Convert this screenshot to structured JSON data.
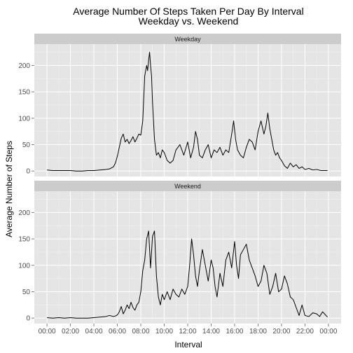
{
  "colors": {
    "panel_bg": "#e5e5e5",
    "strip_bg": "#cccccc",
    "grid_major": "#ffffff",
    "grid_minor": "#f2f2f2",
    "line": "#000000",
    "tick_text": "#4d4d4d"
  },
  "chart_data": {
    "type": "line",
    "title": "Average Number Of Steps Taken Per Day By Interval",
    "subtitle": "Weekday vs. Weekend",
    "xlabel": "Interval",
    "ylabel": "Average Number of Steps",
    "xlim": [
      "00:00",
      "24:00"
    ],
    "ylim": [
      0,
      230
    ],
    "y_ticks": [
      0,
      50,
      100,
      150,
      200
    ],
    "x_ticks": [
      "00:00",
      "02:00",
      "04:00",
      "06:00",
      "08:00",
      "10:00",
      "12:00",
      "14:00",
      "16:00",
      "18:00",
      "20:00",
      "22:00",
      "00:00"
    ],
    "grid": true,
    "facets": [
      {
        "strip": "Weekday",
        "x": [
          "00:00",
          "00:30",
          "01:00",
          "01:30",
          "02:00",
          "02:30",
          "03:00",
          "03:30",
          "04:00",
          "04:30",
          "05:00",
          "05:20",
          "05:40",
          "05:50",
          "06:00",
          "06:10",
          "06:20",
          "06:30",
          "06:40",
          "06:50",
          "07:00",
          "07:10",
          "07:20",
          "07:30",
          "07:40",
          "07:50",
          "08:00",
          "08:10",
          "08:20",
          "08:30",
          "08:35",
          "08:40",
          "08:45",
          "08:50",
          "08:55",
          "09:00",
          "09:10",
          "09:20",
          "09:30",
          "09:40",
          "09:50",
          "10:00",
          "10:15",
          "10:30",
          "10:45",
          "11:00",
          "11:20",
          "11:40",
          "12:00",
          "12:15",
          "12:30",
          "12:40",
          "12:50",
          "13:00",
          "13:15",
          "13:30",
          "13:45",
          "14:00",
          "14:15",
          "14:30",
          "14:45",
          "15:00",
          "15:15",
          "15:30",
          "15:45",
          "15:55",
          "16:05",
          "16:15",
          "16:30",
          "16:45",
          "17:00",
          "17:15",
          "17:30",
          "17:45",
          "18:00",
          "18:15",
          "18:30",
          "18:40",
          "18:50",
          "19:00",
          "19:10",
          "19:20",
          "19:30",
          "19:40",
          "19:50",
          "20:00",
          "20:15",
          "20:30",
          "20:45",
          "21:00",
          "21:15",
          "21:30",
          "21:45",
          "22:00",
          "22:20",
          "22:40",
          "23:00",
          "23:20",
          "23:55"
        ],
        "y": [
          2,
          1,
          1,
          1,
          1,
          0,
          0,
          1,
          1,
          2,
          3,
          4,
          8,
          15,
          28,
          45,
          62,
          70,
          55,
          60,
          52,
          58,
          65,
          55,
          62,
          70,
          68,
          95,
          180,
          200,
          190,
          210,
          225,
          200,
          180,
          130,
          60,
          30,
          35,
          25,
          40,
          35,
          20,
          15,
          20,
          40,
          50,
          30,
          55,
          25,
          45,
          75,
          60,
          30,
          25,
          40,
          50,
          25,
          40,
          35,
          45,
          30,
          40,
          35,
          70,
          95,
          60,
          40,
          30,
          25,
          45,
          60,
          55,
          40,
          75,
          95,
          70,
          85,
          110,
          80,
          60,
          40,
          30,
          35,
          25,
          20,
          10,
          5,
          15,
          8,
          12,
          5,
          8,
          3,
          5,
          2,
          3,
          1,
          1
        ]
      },
      {
        "strip": "Weekend",
        "x": [
          "00:00",
          "00:30",
          "01:00",
          "01:30",
          "02:00",
          "02:30",
          "03:00",
          "03:30",
          "04:00",
          "04:30",
          "05:00",
          "05:20",
          "05:40",
          "05:50",
          "06:00",
          "06:10",
          "06:20",
          "06:30",
          "06:40",
          "06:50",
          "07:00",
          "07:10",
          "07:20",
          "07:30",
          "07:40",
          "07:50",
          "08:00",
          "08:10",
          "08:20",
          "08:30",
          "08:40",
          "08:50",
          "09:00",
          "09:10",
          "09:20",
          "09:30",
          "09:40",
          "09:50",
          "10:00",
          "10:15",
          "10:30",
          "10:45",
          "11:00",
          "11:15",
          "11:30",
          "11:45",
          "12:00",
          "12:10",
          "12:20",
          "12:30",
          "12:40",
          "12:50",
          "13:00",
          "13:15",
          "13:30",
          "13:45",
          "14:00",
          "14:10",
          "14:20",
          "14:30",
          "14:45",
          "15:00",
          "15:15",
          "15:30",
          "15:45",
          "16:00",
          "16:10",
          "16:20",
          "16:30",
          "16:45",
          "17:00",
          "17:15",
          "17:30",
          "17:45",
          "18:00",
          "18:15",
          "18:30",
          "18:45",
          "19:00",
          "19:15",
          "19:30",
          "19:45",
          "20:00",
          "20:15",
          "20:30",
          "20:45",
          "21:00",
          "21:15",
          "21:30",
          "21:45",
          "22:00",
          "22:20",
          "22:40",
          "23:00",
          "23:15",
          "23:30",
          "23:55"
        ],
        "y": [
          1,
          0,
          1,
          0,
          1,
          0,
          0,
          0,
          1,
          2,
          3,
          5,
          3,
          4,
          6,
          12,
          22,
          8,
          15,
          25,
          18,
          30,
          20,
          15,
          25,
          30,
          50,
          90,
          110,
          150,
          165,
          95,
          155,
          165,
          80,
          40,
          25,
          45,
          35,
          50,
          35,
          55,
          45,
          40,
          55,
          45,
          60,
          100,
          150,
          120,
          80,
          60,
          90,
          130,
          100,
          70,
          110,
          95,
          60,
          40,
          85,
          60,
          110,
          125,
          95,
          145,
          100,
          75,
          120,
          130,
          140,
          110,
          95,
          80,
          60,
          70,
          100,
          85,
          45,
          60,
          85,
          50,
          55,
          80,
          65,
          40,
          35,
          20,
          5,
          25,
          5,
          3,
          10,
          8,
          3,
          12,
          2
        ]
      }
    ]
  }
}
